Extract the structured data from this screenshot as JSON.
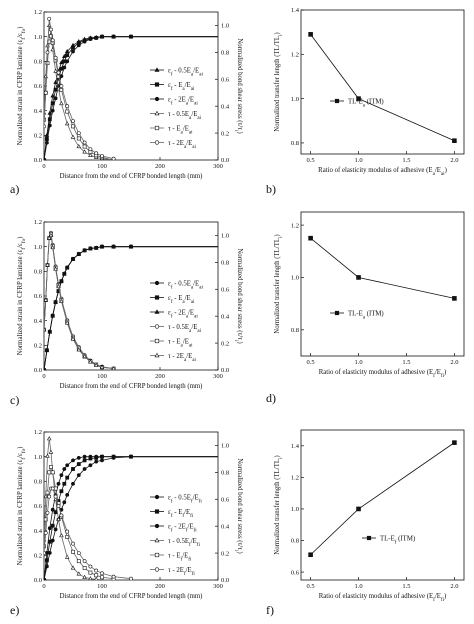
{
  "panel_labels": [
    "a)",
    "b)",
    "c)",
    "d)",
    "e)",
    "f)"
  ],
  "chart_data": [
    {
      "id": "a",
      "type": "line",
      "xlabel": "Distance from the end of CFRP bonded length (mm)",
      "ylabel": "Normalized strain in CFRP laminate (ε_f/ε_fo)",
      "ylabel_right": "Normalized bond shear stress (τ/τ_i)",
      "xlim": [
        0,
        300
      ],
      "ylim": [
        0,
        1.2
      ],
      "ylim_right": [
        0,
        1.1
      ],
      "xticks": [
        0,
        100,
        200,
        300
      ],
      "yticks": [
        0,
        0.2,
        0.4,
        0.6,
        0.8,
        1.0,
        1.2
      ],
      "yticks_right": [
        0,
        0.2,
        0.4,
        0.6,
        0.8,
        1.0
      ],
      "legend_position": "center-right",
      "series": [
        {
          "name": "ε_f - 0.5E_a/E_ai",
          "marker": "triangle",
          "axis": "left",
          "x": [
            0,
            5,
            10,
            15,
            20,
            25,
            30,
            35,
            40,
            50,
            60,
            70,
            80,
            90,
            100,
            120,
            150,
            200,
            300
          ],
          "y": [
            0,
            0.2,
            0.38,
            0.52,
            0.63,
            0.72,
            0.79,
            0.84,
            0.88,
            0.93,
            0.96,
            0.98,
            0.99,
            0.995,
            1,
            1,
            1,
            1,
            1
          ]
        },
        {
          "name": "ε_f - E_a/E_ai",
          "marker": "square",
          "axis": "left",
          "x": [
            0,
            5,
            10,
            15,
            20,
            25,
            30,
            35,
            40,
            50,
            60,
            70,
            80,
            90,
            100,
            120,
            150,
            200,
            300
          ],
          "y": [
            0,
            0.17,
            0.33,
            0.46,
            0.57,
            0.66,
            0.74,
            0.8,
            0.85,
            0.91,
            0.95,
            0.97,
            0.985,
            0.99,
            1,
            1,
            1,
            1,
            1
          ]
        },
        {
          "name": "ε_f - 2E_a/E_ai",
          "marker": "circle",
          "axis": "left",
          "x": [
            0,
            5,
            10,
            15,
            20,
            25,
            30,
            35,
            40,
            50,
            60,
            70,
            80,
            90,
            100,
            120,
            150,
            200,
            300
          ],
          "y": [
            0,
            0.14,
            0.28,
            0.4,
            0.5,
            0.6,
            0.68,
            0.75,
            0.8,
            0.88,
            0.93,
            0.96,
            0.98,
            0.99,
            1,
            1,
            1,
            1,
            1
          ]
        },
        {
          "name": "τ - 0.5E_a/E_ai",
          "marker": "triangle-open",
          "axis": "right",
          "x": [
            0,
            3,
            6,
            9,
            12,
            15,
            20,
            25,
            30,
            40,
            50,
            60,
            70,
            80,
            90,
            100,
            120
          ],
          "y": [
            0.35,
            0.62,
            0.85,
            1.0,
            0.93,
            0.82,
            0.66,
            0.53,
            0.42,
            0.27,
            0.17,
            0.1,
            0.06,
            0.035,
            0.02,
            0.01,
            0
          ]
        },
        {
          "name": "τ - E_a/E_ai",
          "marker": "square-open",
          "axis": "right",
          "x": [
            0,
            3,
            6,
            9,
            12,
            15,
            20,
            25,
            30,
            40,
            50,
            60,
            70,
            80,
            90,
            100,
            120
          ],
          "y": [
            0.3,
            0.5,
            0.72,
            0.88,
            0.92,
            0.87,
            0.74,
            0.62,
            0.52,
            0.36,
            0.25,
            0.16,
            0.1,
            0.06,
            0.035,
            0.02,
            0
          ]
        },
        {
          "name": "τ - 2E_a/E_ai",
          "marker": "circle-open",
          "axis": "right",
          "x": [
            0,
            3,
            6,
            9,
            12,
            15,
            20,
            25,
            30,
            40,
            50,
            60,
            70,
            80,
            90,
            100,
            120
          ],
          "y": [
            0.25,
            0.5,
            0.8,
            1.05,
            0.97,
            0.89,
            0.76,
            0.65,
            0.55,
            0.4,
            0.29,
            0.2,
            0.13,
            0.08,
            0.05,
            0.03,
            0.01
          ]
        }
      ]
    },
    {
      "id": "b",
      "type": "line",
      "xlabel": "Ratio of elasticity modulus of adhesive (E_a/E_ai)",
      "ylabel": "Normalized transfer length (TL/TL_i)",
      "xlim": [
        0.4,
        2.1
      ],
      "ylim": [
        0.75,
        1.4
      ],
      "xticks": [
        0.5,
        1.0,
        1.5,
        2.0
      ],
      "yticks": [
        0.8,
        1.0,
        1.2,
        1.4
      ],
      "legend_position": "center",
      "series": [
        {
          "name": "TL-E_a (ITM)",
          "marker": "square",
          "x": [
            0.5,
            1.0,
            2.0
          ],
          "y": [
            1.29,
            1.0,
            0.81
          ]
        }
      ]
    },
    {
      "id": "c",
      "type": "line",
      "xlabel": "Distance from the end of CFRP bonded length (mm)",
      "ylabel": "Normalized strain in CFRP laminate (ε_f/ε_fo)",
      "ylabel_right": "Normalized bond shear stress (τ/τ_i)",
      "xlim": [
        0,
        300
      ],
      "ylim": [
        0,
        1.2
      ],
      "ylim_right": [
        0,
        1.1
      ],
      "xticks": [
        0,
        100,
        200,
        300
      ],
      "yticks": [
        0,
        0.2,
        0.4,
        0.6,
        0.8,
        1.0,
        1.2
      ],
      "yticks_right": [
        0,
        0.2,
        0.4,
        0.6,
        0.8,
        1.0
      ],
      "legend_position": "center-right",
      "series": [
        {
          "name": "ε_f - 0.5E_a/E_ai",
          "marker": "circle",
          "axis": "left",
          "x": [
            0,
            5,
            10,
            15,
            20,
            25,
            30,
            35,
            40,
            50,
            60,
            70,
            80,
            90,
            100,
            120,
            150,
            200,
            300
          ],
          "y": [
            0,
            0.16,
            0.31,
            0.44,
            0.55,
            0.64,
            0.72,
            0.78,
            0.83,
            0.9,
            0.94,
            0.97,
            0.985,
            0.99,
            1,
            1,
            1,
            1,
            1
          ]
        },
        {
          "name": "ε_f - E_a/E_ai",
          "marker": "square",
          "axis": "left",
          "x": [
            0,
            5,
            10,
            15,
            20,
            25,
            30,
            35,
            40,
            50,
            60,
            70,
            80,
            90,
            100,
            120,
            150,
            200,
            300
          ],
          "y": [
            0,
            0.16,
            0.31,
            0.44,
            0.55,
            0.64,
            0.72,
            0.78,
            0.83,
            0.9,
            0.94,
            0.97,
            0.985,
            0.99,
            1,
            1,
            1,
            1,
            1
          ]
        },
        {
          "name": "ε_f - 2E_a/E_ai",
          "marker": "triangle",
          "axis": "left",
          "x": [
            0,
            5,
            10,
            15,
            20,
            25,
            30,
            35,
            40,
            50,
            60,
            70,
            80,
            90,
            100,
            120,
            150,
            200,
            300
          ],
          "y": [
            0,
            0.16,
            0.31,
            0.44,
            0.55,
            0.64,
            0.72,
            0.78,
            0.83,
            0.9,
            0.94,
            0.97,
            0.985,
            0.99,
            1,
            1,
            1,
            1,
            1
          ]
        },
        {
          "name": "τ - 0.5E_a/E_ai",
          "marker": "circle-open",
          "axis": "right",
          "x": [
            0,
            3,
            6,
            9,
            12,
            15,
            20,
            25,
            30,
            40,
            50,
            60,
            70,
            80,
            90,
            100,
            120
          ],
          "y": [
            0.3,
            0.52,
            0.78,
            0.98,
            1.02,
            0.93,
            0.77,
            0.64,
            0.53,
            0.37,
            0.25,
            0.17,
            0.11,
            0.07,
            0.04,
            0.025,
            0.01
          ]
        },
        {
          "name": "τ - E_a/E_ai",
          "marker": "square-open",
          "axis": "right",
          "x": [
            0,
            3,
            6,
            9,
            12,
            15,
            20,
            25,
            30,
            40,
            50,
            60,
            70,
            80,
            90,
            100,
            120
          ],
          "y": [
            0.3,
            0.52,
            0.78,
            0.98,
            1.01,
            0.92,
            0.76,
            0.63,
            0.52,
            0.36,
            0.24,
            0.16,
            0.1,
            0.065,
            0.04,
            0.02,
            0.01
          ]
        },
        {
          "name": "τ - 2E_a/E_ai",
          "marker": "triangle-open",
          "axis": "right",
          "x": [
            0,
            3,
            6,
            9,
            12,
            15,
            20,
            25,
            30,
            40,
            50,
            60,
            70,
            80,
            90,
            100,
            120
          ],
          "y": [
            0.3,
            0.52,
            0.78,
            0.98,
            1.0,
            0.91,
            0.75,
            0.62,
            0.51,
            0.35,
            0.23,
            0.15,
            0.1,
            0.06,
            0.035,
            0.02,
            0.01
          ]
        }
      ]
    },
    {
      "id": "d",
      "type": "line",
      "xlabel": "Ratio of elasticity modulus of adhesive (E_f/E_fi)",
      "ylabel": "Normalized transfer length (TL/TL_i)",
      "xlim": [
        0.4,
        2.1
      ],
      "ylim": [
        0.7,
        1.25
      ],
      "xticks": [
        0.5,
        1.0,
        1.5,
        2.0
      ],
      "yticks": [
        0.8,
        1.0,
        1.2
      ],
      "legend_position": "center",
      "series": [
        {
          "name": "TL-E_a (ITM)",
          "marker": "square",
          "x": [
            0.5,
            1.0,
            2.0
          ],
          "y": [
            1.15,
            1.0,
            0.92
          ]
        }
      ]
    },
    {
      "id": "e",
      "type": "line",
      "xlabel": "Distance from the end of CFRP bonded length (mm)",
      "ylabel": "Normalized strain in CFRP laminate (ε_f/ε_fo)",
      "ylabel_right": "Normalized bond shear stress (τ/τ_i)",
      "xlim": [
        0,
        300
      ],
      "ylim": [
        0,
        1.2
      ],
      "ylim_right": [
        0,
        1.1
      ],
      "xticks": [
        0,
        100,
        200,
        300
      ],
      "yticks": [
        0,
        0.2,
        0.4,
        0.6,
        0.8,
        1.0,
        1.2
      ],
      "yticks_right": [
        0,
        0.2,
        0.4,
        0.6,
        0.8,
        1.0
      ],
      "legend_position": "center-right",
      "series": [
        {
          "name": "ε_f - 0.5E_f/E_fi",
          "marker": "circle",
          "axis": "left",
          "x": [
            0,
            5,
            10,
            15,
            20,
            25,
            30,
            35,
            40,
            50,
            60,
            70,
            80,
            90,
            100,
            120,
            150,
            200,
            300
          ],
          "y": [
            0,
            0.22,
            0.42,
            0.57,
            0.69,
            0.78,
            0.85,
            0.9,
            0.93,
            0.97,
            0.99,
            1,
            1,
            1,
            1,
            1,
            1,
            1,
            1
          ]
        },
        {
          "name": "ε_f - E_f/E_fi",
          "marker": "square",
          "axis": "left",
          "x": [
            0,
            5,
            10,
            15,
            20,
            25,
            30,
            35,
            40,
            50,
            60,
            70,
            80,
            90,
            100,
            120,
            150,
            200,
            300
          ],
          "y": [
            0,
            0.16,
            0.31,
            0.44,
            0.55,
            0.64,
            0.72,
            0.78,
            0.83,
            0.9,
            0.94,
            0.97,
            0.985,
            0.99,
            1,
            1,
            1,
            1,
            1
          ]
        },
        {
          "name": "ε_f - 2E_f/E_fi",
          "marker": "circle",
          "axis": "left",
          "x": [
            0,
            5,
            10,
            15,
            20,
            25,
            30,
            35,
            40,
            50,
            60,
            70,
            80,
            90,
            100,
            120,
            150,
            200,
            300
          ],
          "y": [
            0,
            0.11,
            0.22,
            0.32,
            0.41,
            0.49,
            0.57,
            0.63,
            0.69,
            0.78,
            0.85,
            0.9,
            0.93,
            0.96,
            0.97,
            0.99,
            1,
            1,
            1
          ]
        },
        {
          "name": "τ - 0.5E_f/E_fi",
          "marker": "triangle-open",
          "axis": "right",
          "x": [
            0,
            3,
            6,
            9,
            12,
            15,
            20,
            25,
            30,
            40,
            50,
            60,
            70,
            80,
            90,
            100,
            120
          ],
          "y": [
            0.3,
            0.62,
            0.92,
            1.05,
            0.95,
            0.8,
            0.6,
            0.45,
            0.33,
            0.17,
            0.09,
            0.045,
            0.02,
            0.01,
            0.005,
            0,
            0
          ]
        },
        {
          "name": "τ - E_f/E_fi",
          "marker": "square-open",
          "axis": "right",
          "x": [
            0,
            3,
            6,
            9,
            12,
            15,
            20,
            25,
            30,
            40,
            50,
            60,
            70,
            80,
            90,
            100,
            120
          ],
          "y": [
            0.25,
            0.45,
            0.65,
            0.8,
            0.84,
            0.8,
            0.68,
            0.57,
            0.47,
            0.32,
            0.21,
            0.14,
            0.09,
            0.055,
            0.035,
            0.02,
            0.01
          ]
        },
        {
          "name": "τ - 2E_f/E_fi",
          "marker": "circle-open",
          "axis": "right",
          "x": [
            0,
            3,
            6,
            9,
            12,
            15,
            20,
            25,
            30,
            40,
            50,
            60,
            70,
            80,
            90,
            100,
            120,
            150
          ],
          "y": [
            0.2,
            0.35,
            0.5,
            0.62,
            0.68,
            0.68,
            0.62,
            0.55,
            0.48,
            0.36,
            0.27,
            0.2,
            0.14,
            0.1,
            0.07,
            0.05,
            0.025,
            0.01
          ]
        }
      ]
    },
    {
      "id": "f",
      "type": "line",
      "xlabel": "Ratio of elasticity modulus of adhesive (E_f/E_fi)",
      "ylabel": "Normalized transfer length (TL/TL_i)",
      "xlim": [
        0.4,
        2.1
      ],
      "ylim": [
        0.55,
        1.5
      ],
      "xticks": [
        0.5,
        1.0,
        1.5,
        2.0
      ],
      "yticks": [
        0.6,
        0.8,
        1.0,
        1.2,
        1.4
      ],
      "legend_position": "center-right",
      "series": [
        {
          "name": "TL-E_f (ITM)",
          "marker": "square",
          "x": [
            0.5,
            1.0,
            2.0
          ],
          "y": [
            0.71,
            1.0,
            1.42
          ]
        }
      ]
    }
  ]
}
